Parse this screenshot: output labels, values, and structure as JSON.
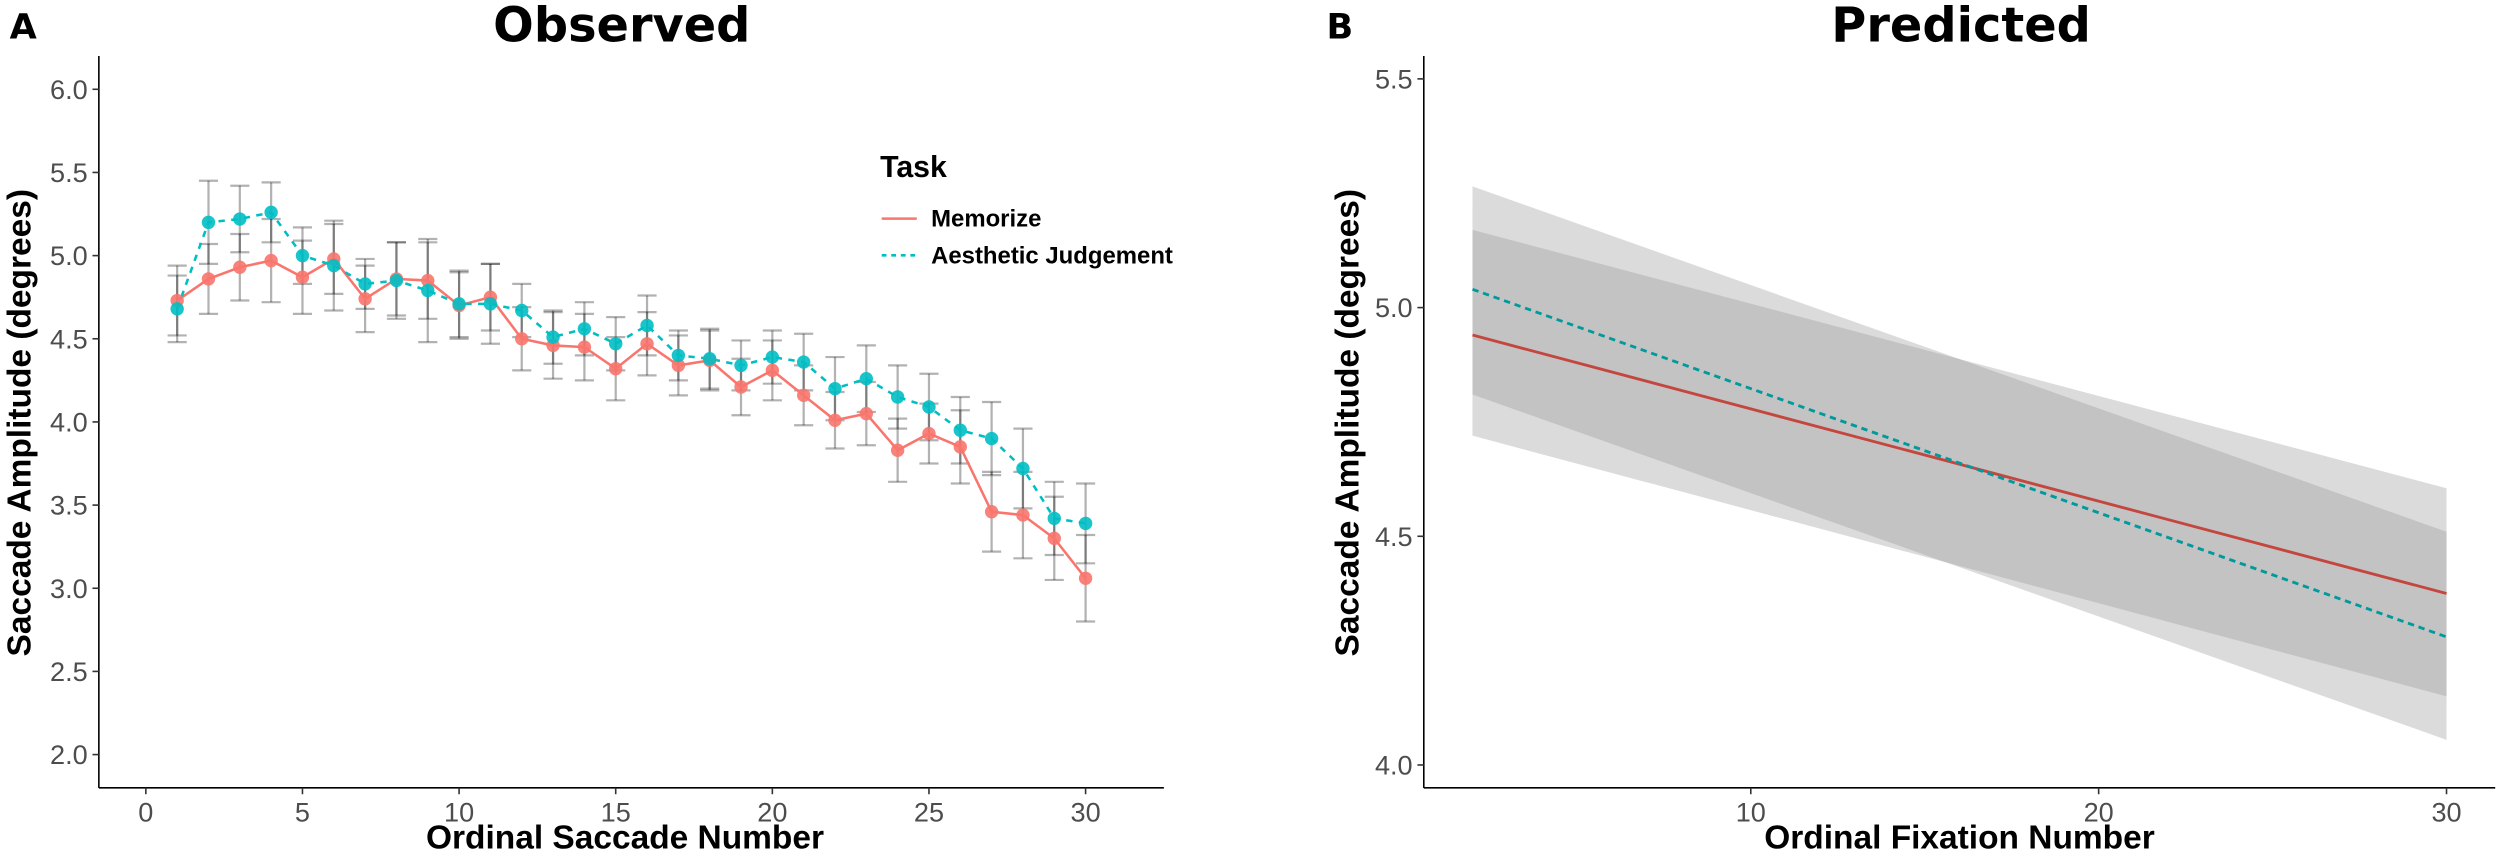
{
  "colors": {
    "memorize": "#F8766D",
    "aesthetic": "#00BFC4",
    "memorize_line_b": "#C4473F",
    "aesthetic_line_b": "#00999C"
  },
  "chart_data": [
    {
      "panel_label": "A",
      "type": "line",
      "title": "Observed",
      "xlabel": "Ordinal Saccade Number",
      "ylabel": "Saccade Amplitude (degrees)",
      "xlim": [
        -1.5,
        32.5
      ],
      "ylim": [
        1.8,
        6.2
      ],
      "xticks": [
        0,
        5,
        10,
        15,
        20,
        25,
        30
      ],
      "xtick_labels": [
        "0",
        "5",
        "10",
        "15",
        "20",
        "25",
        "30"
      ],
      "yticks": [
        2.0,
        2.5,
        3.0,
        3.5,
        4.0,
        4.5,
        5.0,
        5.5,
        6.0
      ],
      "ytick_labels": [
        "2.0",
        "2.5",
        "3.0",
        "3.5",
        "4.0",
        "4.5",
        "5.0",
        "5.5",
        "6.0"
      ],
      "grid": false,
      "legend": {
        "title": "Task",
        "placement": "top-right",
        "entries": [
          "Memorize",
          "Aesthetic Judgement"
        ]
      },
      "x": [
        1,
        2,
        3,
        4,
        5,
        6,
        7,
        8,
        9,
        10,
        11,
        12,
        13,
        14,
        15,
        16,
        17,
        18,
        19,
        20,
        21,
        22,
        23,
        24,
        25,
        26,
        27,
        28,
        29,
        30
      ],
      "series": [
        {
          "name": "Memorize",
          "style": "solid",
          "values": [
            4.73,
            4.86,
            4.93,
            4.97,
            4.87,
            4.98,
            4.74,
            4.86,
            4.85,
            4.7,
            4.75,
            4.5,
            4.46,
            4.45,
            4.32,
            4.47,
            4.34,
            4.37,
            4.21,
            4.31,
            4.16,
            4.01,
            4.05,
            3.83,
            3.93,
            3.85,
            3.46,
            3.44,
            3.3,
            3.06
          ],
          "error": [
            0.21,
            0.21,
            0.2,
            0.25,
            0.22,
            0.21,
            0.2,
            0.22,
            0.23,
            0.2,
            0.2,
            0.19,
            0.2,
            0.2,
            0.19,
            0.19,
            0.18,
            0.18,
            0.17,
            0.18,
            0.18,
            0.17,
            0.19,
            0.19,
            0.18,
            0.22,
            0.24,
            0.26,
            0.25,
            0.26
          ]
        },
        {
          "name": "Aesthetic Judgement",
          "style": "dashed",
          "values": [
            4.68,
            5.2,
            5.22,
            5.26,
            5.0,
            4.94,
            4.83,
            4.85,
            4.79,
            4.71,
            4.71,
            4.67,
            4.51,
            4.56,
            4.47,
            4.58,
            4.4,
            4.38,
            4.34,
            4.39,
            4.36,
            4.2,
            4.26,
            4.15,
            4.09,
            3.95,
            3.9,
            3.72,
            3.42,
            3.39
          ],
          "error": [
            0.2,
            0.25,
            0.2,
            0.18,
            0.17,
            0.27,
            0.15,
            0.23,
            0.31,
            0.2,
            0.24,
            0.16,
            0.16,
            0.16,
            0.16,
            0.18,
            0.15,
            0.18,
            0.15,
            0.16,
            0.17,
            0.19,
            0.2,
            0.19,
            0.2,
            0.2,
            0.22,
            0.24,
            0.22,
            0.24
          ]
        }
      ]
    },
    {
      "panel_label": "B",
      "type": "line",
      "title": "Predicted",
      "xlabel": "Ordinal Fixation Number",
      "ylabel": "Saccade Amplitude (degrees)",
      "xlim": [
        0.6,
        31.4
      ],
      "ylim": [
        3.95,
        5.55
      ],
      "xticks": [
        10,
        20,
        30
      ],
      "xtick_labels": [
        "10",
        "20",
        "30"
      ],
      "yticks": [
        4.0,
        4.5,
        5.0,
        5.5
      ],
      "ytick_labels": [
        "4.0",
        "4.5",
        "5.0",
        "5.5"
      ],
      "grid": false,
      "x": [
        2,
        30
      ],
      "series": [
        {
          "name": "Memorize",
          "style": "solid",
          "values": [
            4.94,
            4.375
          ],
          "lower": [
            4.72,
            4.15
          ],
          "upper": [
            5.17,
            4.605
          ]
        },
        {
          "name": "Aesthetic Judgement",
          "style": "dashed",
          "values": [
            5.04,
            4.28
          ],
          "lower": [
            4.81,
            4.055
          ],
          "upper": [
            5.265,
            4.51
          ]
        }
      ]
    }
  ]
}
